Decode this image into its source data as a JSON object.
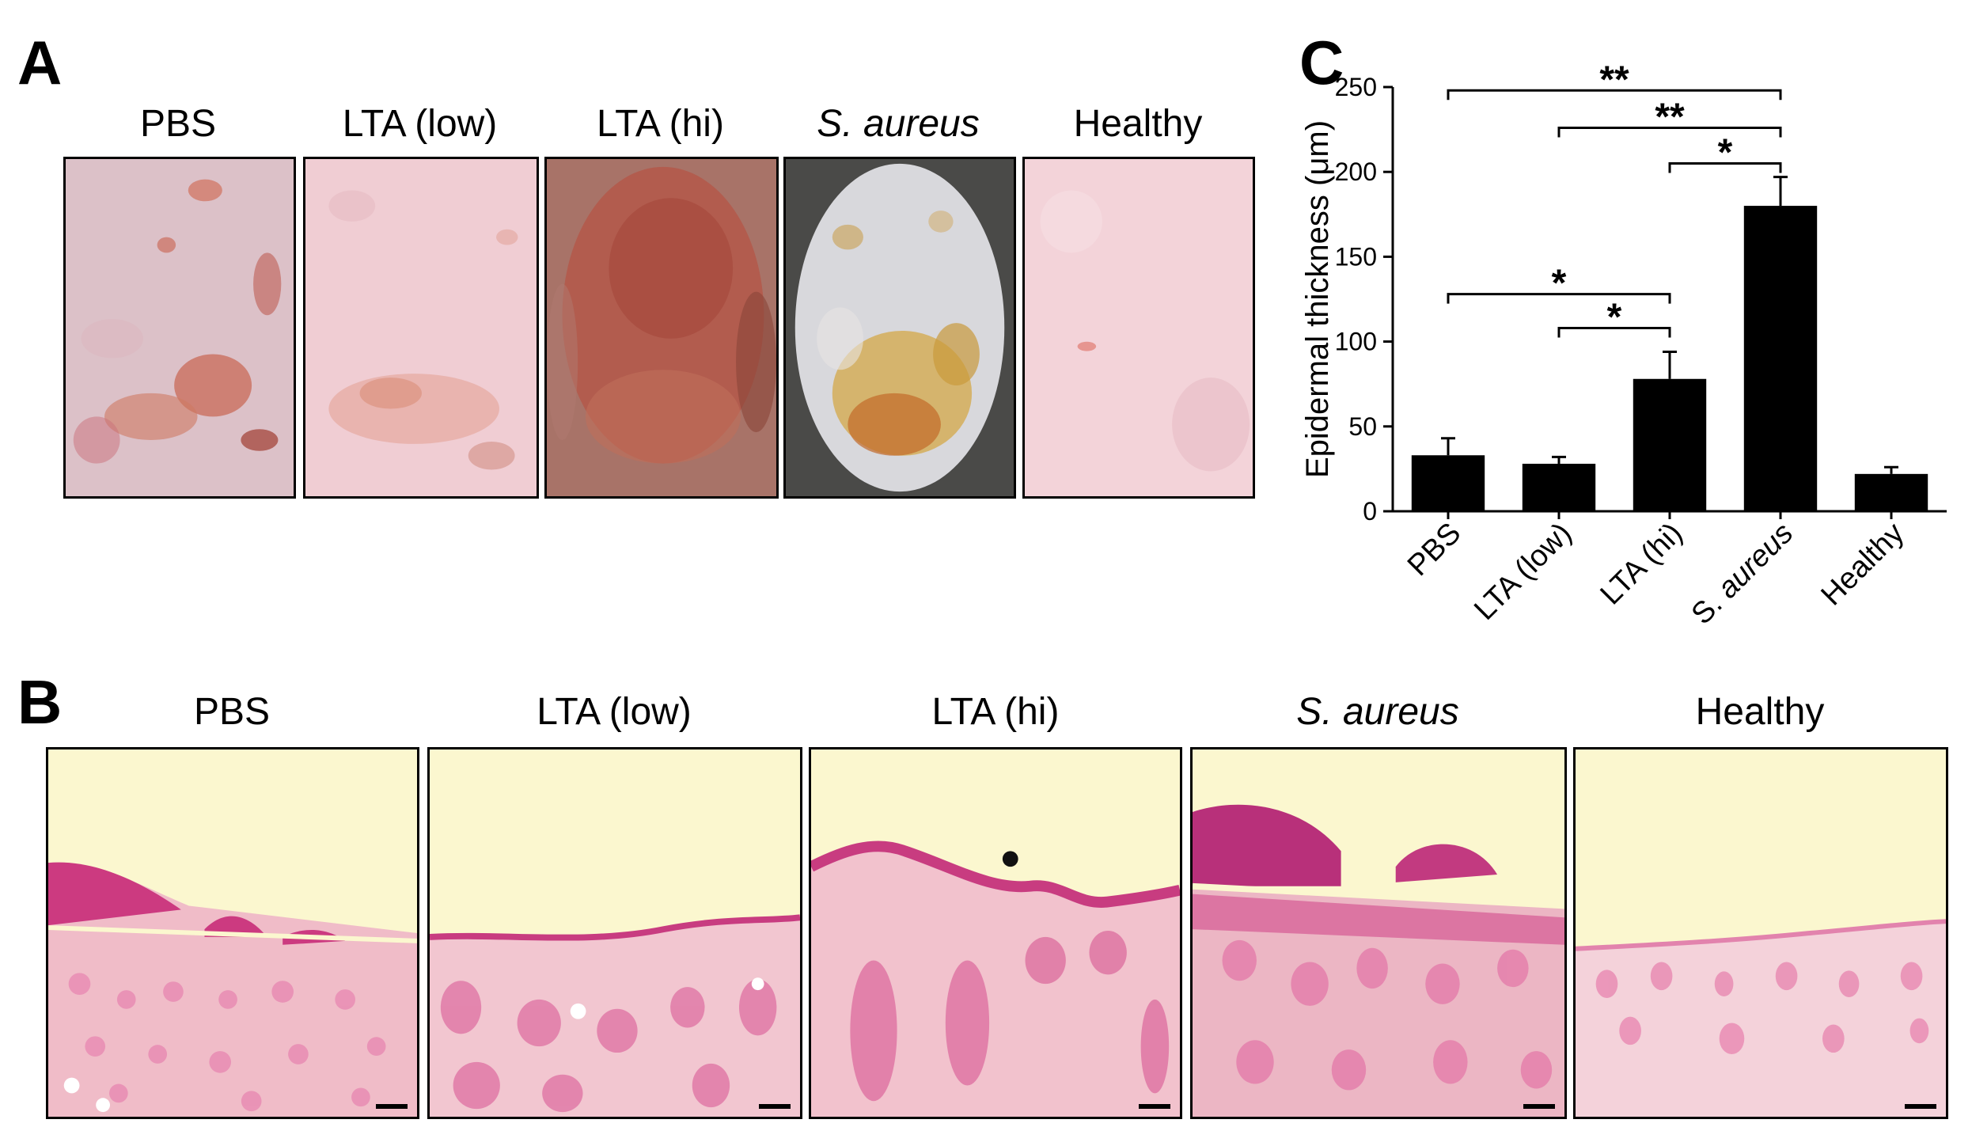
{
  "panels": {
    "a": {
      "letter": "A"
    },
    "b": {
      "letter": "B"
    },
    "c": {
      "letter": "C"
    }
  },
  "groups": [
    {
      "label": "PBS",
      "italic": false
    },
    {
      "label": "LTA (low)",
      "italic": false
    },
    {
      "label": "LTA (hi)",
      "italic": false
    },
    {
      "label": "S. aureus",
      "italic": true
    },
    {
      "label": "Healthy",
      "italic": false
    }
  ],
  "chart_data": {
    "type": "bar",
    "categories": [
      "PBS",
      "LTA (low)",
      "LTA (hi)",
      "S. aureus",
      "Healthy"
    ],
    "values": [
      33,
      28,
      78,
      180,
      22
    ],
    "errors": [
      10,
      4,
      16,
      17,
      4
    ],
    "ylabel": "Epidermal thickness (μm)",
    "ylim": [
      0,
      250
    ],
    "yticks": [
      0,
      50,
      100,
      150,
      200,
      250
    ],
    "bar_color": "#000000",
    "significance": [
      {
        "from": 0,
        "to": 3,
        "label": "**"
      },
      {
        "from": 1,
        "to": 3,
        "label": "**"
      },
      {
        "from": 2,
        "to": 3,
        "label": "*"
      },
      {
        "from": 0,
        "to": 2,
        "label": "*"
      },
      {
        "from": 1,
        "to": 2,
        "label": "*"
      }
    ]
  }
}
